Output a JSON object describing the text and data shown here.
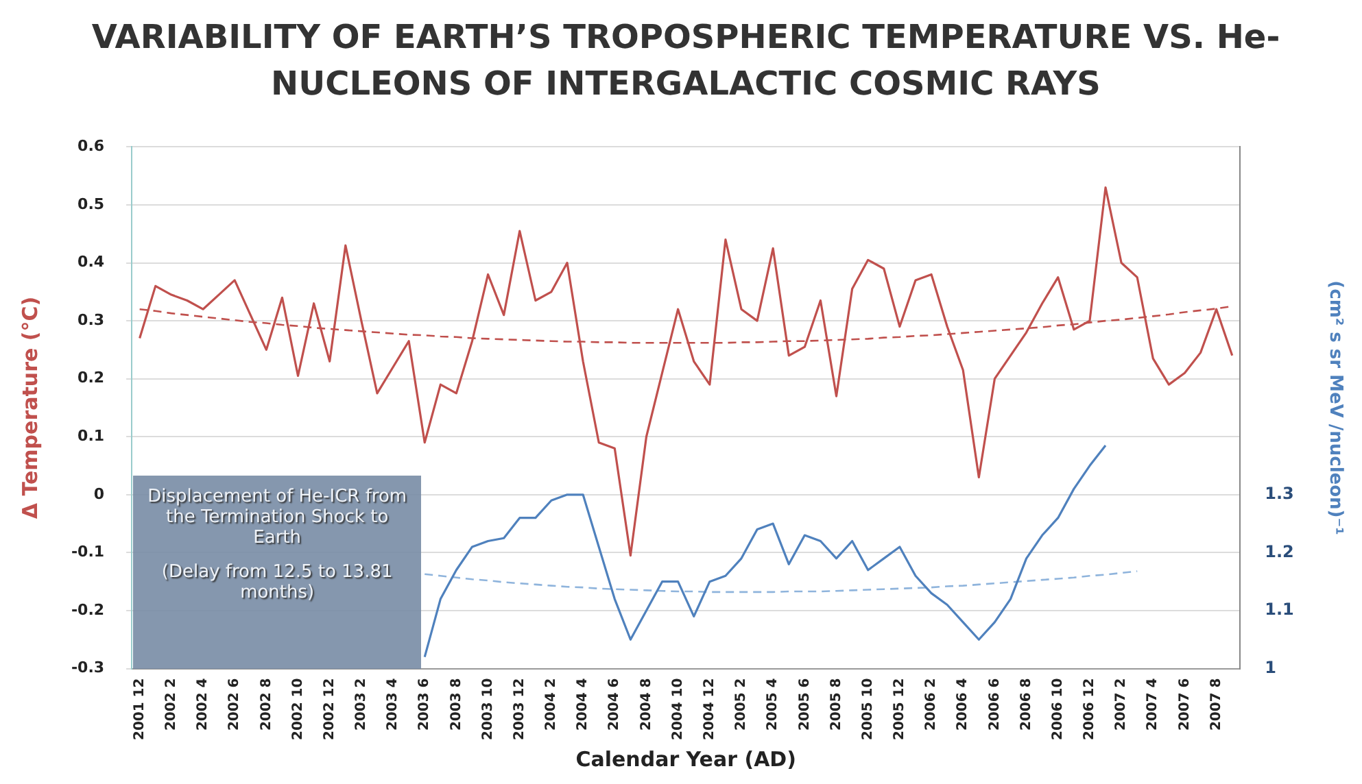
{
  "chart_data": {
    "type": "line",
    "title": "VARIABILITY OF EARTH’S TROPOSPHERIC TEMPERATURE VS. He-NUCLEONS OF INTERGALACTIC COSMIC RAYS",
    "xlabel": "Calendar Year (AD)",
    "ylabel": "Δ Temperature (°C)",
    "y2label": "(cm² s sr MeV /nucleon)⁻¹",
    "annotations": [
      "Displacement of He-ICR from the Termination Shock to Earth",
      "(Delay from 12.5 to 13.81 months)"
    ],
    "categories": [
      "2001 12",
      null,
      "2002 2",
      null,
      "2002 4",
      null,
      "2002 6",
      null,
      "2002 8",
      null,
      "2002 10",
      null,
      "2002 12",
      null,
      "2003 2",
      null,
      "2003 4",
      null,
      "2003 6",
      null,
      "2003 8",
      null,
      "2003 10",
      null,
      "2003 12",
      null,
      "2004 2",
      null,
      "2004 4",
      null,
      "2004 6",
      null,
      "2004 8",
      null,
      "2004 10",
      null,
      "2004 12",
      null,
      "2005 2",
      null,
      "2005 4",
      null,
      "2005 6",
      null,
      "2005 8",
      null,
      "2005 10",
      null,
      "2005 12",
      null,
      "2006 2",
      null,
      "2006 4",
      null,
      "2006 6",
      null,
      "2006 8",
      null,
      "2006 10",
      null,
      "2006 12",
      null,
      "2007 2",
      null,
      "2007 4",
      null,
      "2007 6",
      null,
      "2007 8",
      null
    ],
    "series": [
      {
        "color": "#c0504d",
        "values": [
          0.27,
          0.36,
          0.345,
          0.335,
          0.32,
          0.345,
          0.37,
          0.31,
          0.25,
          0.34,
          0.205,
          0.33,
          0.23,
          0.43,
          0.3,
          0.175,
          0.22,
          0.265,
          0.09,
          0.19,
          0.175,
          0.265,
          0.38,
          0.31,
          0.455,
          0.335,
          0.35,
          0.4,
          0.23,
          0.09,
          0.08,
          -0.105,
          0.1,
          0.21,
          0.32,
          0.23,
          0.19,
          0.44,
          0.32,
          0.3,
          0.425,
          0.24,
          0.255,
          0.335,
          0.17,
          0.355,
          0.405,
          0.39,
          0.29,
          0.37,
          0.38,
          0.29,
          0.215,
          0.03,
          0.2,
          0.24,
          0.28,
          0.33,
          0.375,
          0.285,
          0.3,
          0.53,
          0.4,
          0.375,
          0.235,
          0.19,
          0.21,
          0.245,
          0.32,
          0.24
        ]
      },
      {
        "color": "#c0504d",
        "line_style": "dashed",
        "values": [
          0.32,
          0.317,
          0.313,
          0.31,
          0.307,
          0.304,
          0.301,
          0.298,
          0.296,
          0.293,
          0.291,
          0.288,
          0.286,
          0.284,
          0.282,
          0.28,
          0.278,
          0.276,
          0.275,
          0.273,
          0.272,
          0.27,
          0.269,
          0.268,
          0.267,
          0.266,
          0.265,
          0.264,
          0.264,
          0.263,
          0.263,
          0.262,
          0.262,
          0.262,
          0.262,
          0.262,
          0.262,
          0.262,
          0.263,
          0.263,
          0.264,
          0.265,
          0.265,
          0.266,
          0.267,
          0.268,
          0.269,
          0.271,
          0.272,
          0.274,
          0.275,
          0.277,
          0.279,
          0.281,
          0.283,
          0.285,
          0.287,
          0.289,
          0.292,
          0.294,
          0.297,
          0.3,
          0.302,
          0.305,
          0.308,
          0.311,
          0.315,
          0.318,
          0.321,
          0.325
        ]
      },
      {
        "color": "#4f81bd",
        "axis": "y2",
        "values": [
          null,
          null,
          null,
          null,
          null,
          null,
          null,
          null,
          null,
          null,
          null,
          null,
          null,
          null,
          null,
          null,
          null,
          null,
          1.02,
          1.12,
          1.17,
          1.21,
          1.22,
          1.225,
          1.26,
          1.26,
          1.29,
          1.3,
          1.3,
          1.21,
          1.12,
          1.05,
          1.1,
          1.15,
          1.15,
          1.09,
          1.15,
          1.16,
          1.19,
          1.24,
          1.25,
          1.18,
          1.23,
          1.22,
          1.19,
          1.22,
          1.17,
          1.19,
          1.21,
          1.16,
          1.13,
          1.11,
          1.08,
          1.05,
          1.08,
          1.12,
          1.19,
          1.23,
          1.26,
          1.31,
          1.35,
          1.385,
          null,
          null,
          null,
          null,
          null,
          null,
          null,
          null
        ]
      },
      {
        "color": "#8fb4dc",
        "axis": "y2",
        "line_style": "dashed",
        "values": [
          null,
          null,
          null,
          null,
          null,
          null,
          null,
          null,
          null,
          null,
          null,
          null,
          null,
          null,
          null,
          null,
          null,
          null,
          1.163,
          1.16,
          1.157,
          1.154,
          1.152,
          1.149,
          1.147,
          1.145,
          1.143,
          1.141,
          1.14,
          1.138,
          1.137,
          1.136,
          1.135,
          1.134,
          1.133,
          1.133,
          1.132,
          1.132,
          1.132,
          1.132,
          1.132,
          1.133,
          1.133,
          1.133,
          1.134,
          1.135,
          1.136,
          1.137,
          1.138,
          1.139,
          1.14,
          1.142,
          1.143,
          1.145,
          1.147,
          1.149,
          1.151,
          1.153,
          1.155,
          1.157,
          1.16,
          1.162,
          1.165,
          1.168,
          null,
          null,
          null,
          null,
          null,
          null
        ]
      }
    ],
    "ylim": [
      -0.3,
      0.6
    ],
    "yticks": [
      -0.3,
      -0.2,
      -0.1,
      0,
      0.1,
      0.2,
      0.3,
      0.4,
      0.5,
      0.6
    ],
    "y2lim": [
      1,
      1.9
    ],
    "y2ticks": [
      1,
      1.1,
      1.2,
      1.3
    ],
    "grid": "y",
    "legend": false,
    "marker": "none"
  }
}
